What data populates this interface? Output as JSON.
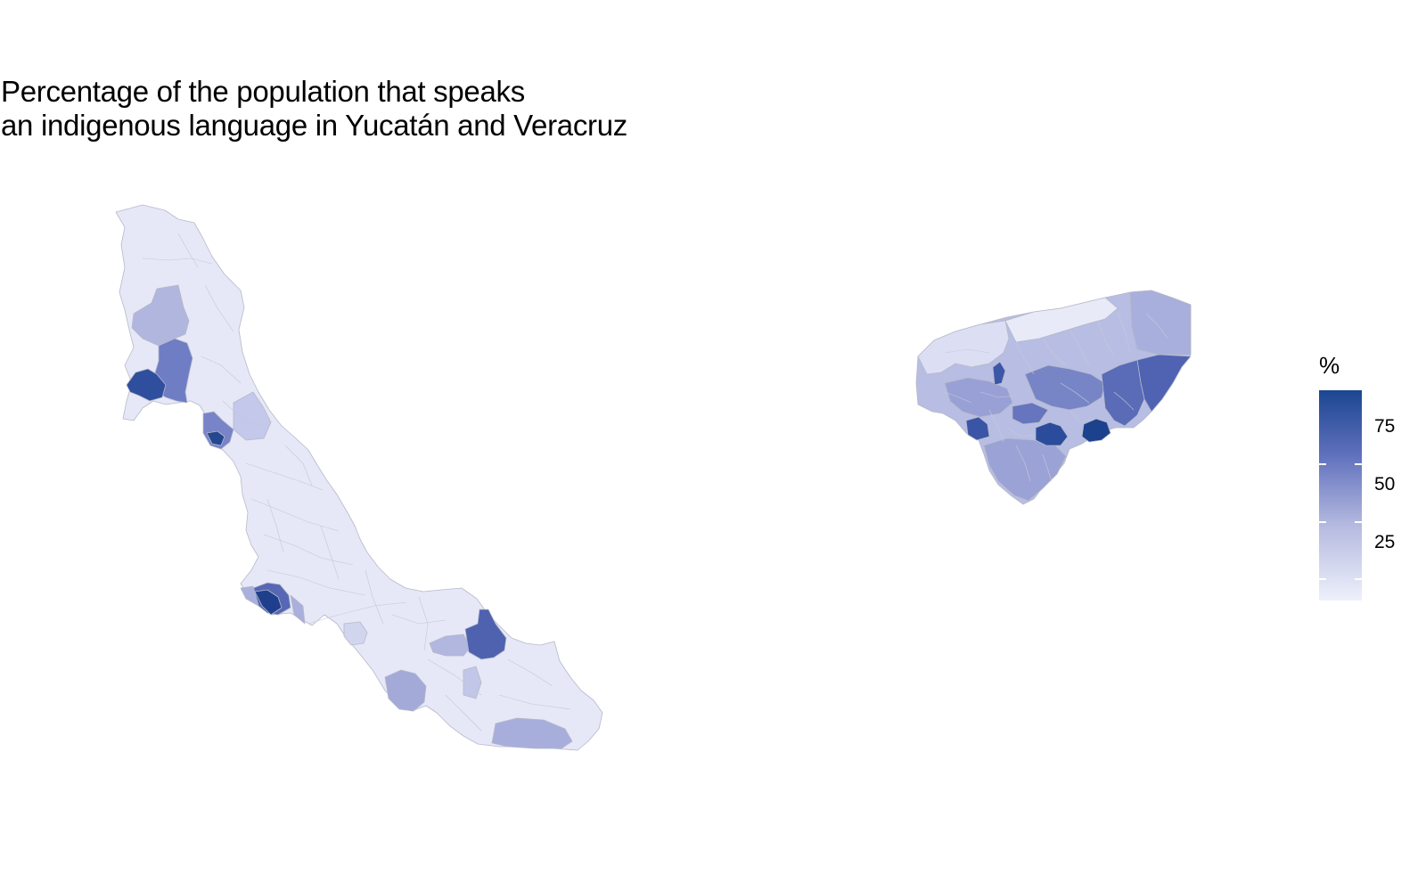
{
  "title": {
    "line1": "Percentage of the population that speaks",
    "line2": "an indigenous language in Yucatán and Veracruz"
  },
  "legend": {
    "title": "%",
    "labels": [
      "75",
      "50",
      "25"
    ],
    "values": [
      75,
      50,
      25
    ],
    "min": 0,
    "max": 92,
    "low_color": "#eef0fb",
    "high_color": "#1c4690"
  },
  "colors": {
    "border": "#b5b9c8",
    "background": "#ffffff"
  }
}
